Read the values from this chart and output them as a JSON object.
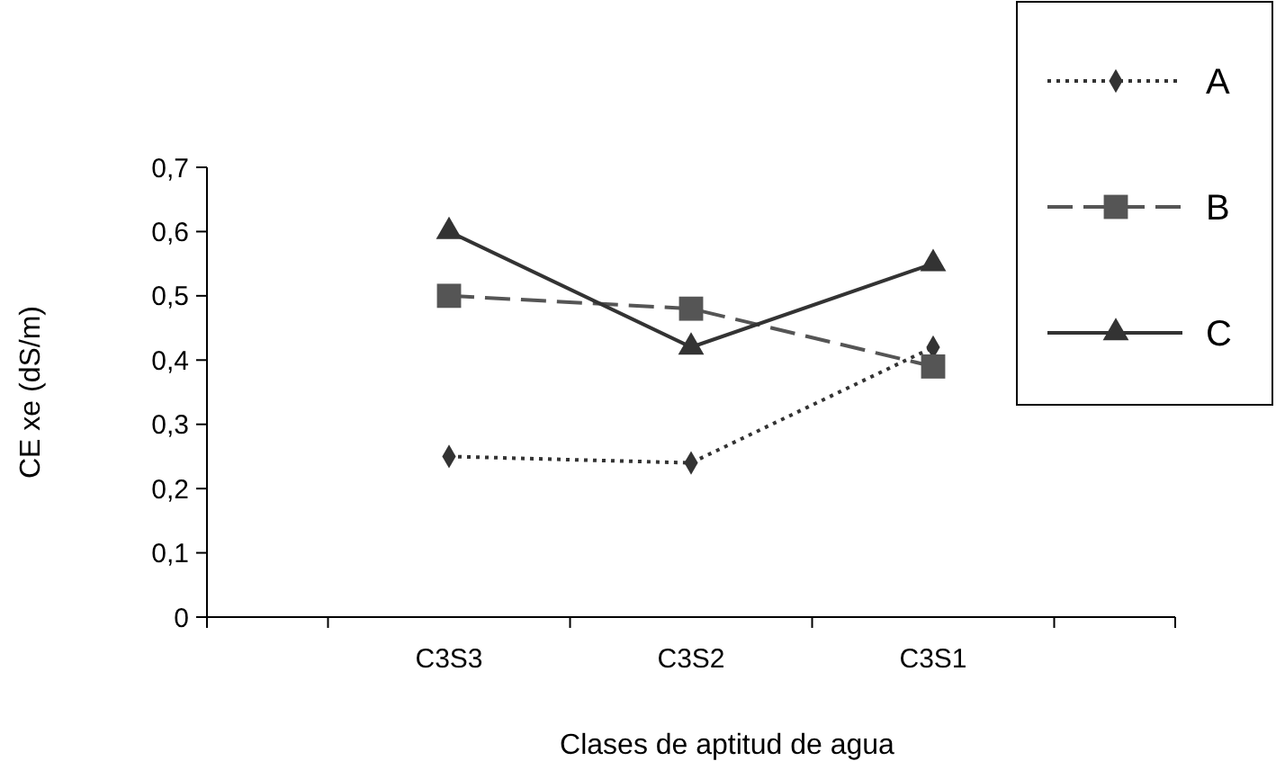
{
  "chart_data": {
    "type": "line",
    "xlabel": "Clases de aptitud de agua",
    "ylabel": "CE xe (dS/m)",
    "categories": [
      "C3S3",
      "C3S2",
      "C3S1"
    ],
    "series": [
      {
        "name": "A",
        "color": "#333333",
        "values": [
          0.25,
          0.24,
          0.42
        ],
        "marker": "diamond",
        "line_style": "dotted"
      },
      {
        "name": "B",
        "color": "#555555",
        "values": [
          0.5,
          0.48,
          0.39
        ],
        "marker": "square",
        "line_style": "dashed"
      },
      {
        "name": "C",
        "color": "#333333",
        "values": [
          0.6,
          0.42,
          0.55
        ],
        "marker": "triangle",
        "line_style": "solid"
      }
    ],
    "ylim": [
      0,
      0.7
    ],
    "yticks": [
      {
        "value": 0,
        "label": "0"
      },
      {
        "value": 0.1,
        "label": "0,1"
      },
      {
        "value": 0.2,
        "label": "0,2"
      },
      {
        "value": 0.3,
        "label": "0,3"
      },
      {
        "value": 0.4,
        "label": "0,4"
      },
      {
        "value": 0.5,
        "label": "0,5"
      },
      {
        "value": 0.6,
        "label": "0,6"
      },
      {
        "value": 0.7,
        "label": "0,7"
      }
    ],
    "grid": false,
    "legend": "right"
  }
}
